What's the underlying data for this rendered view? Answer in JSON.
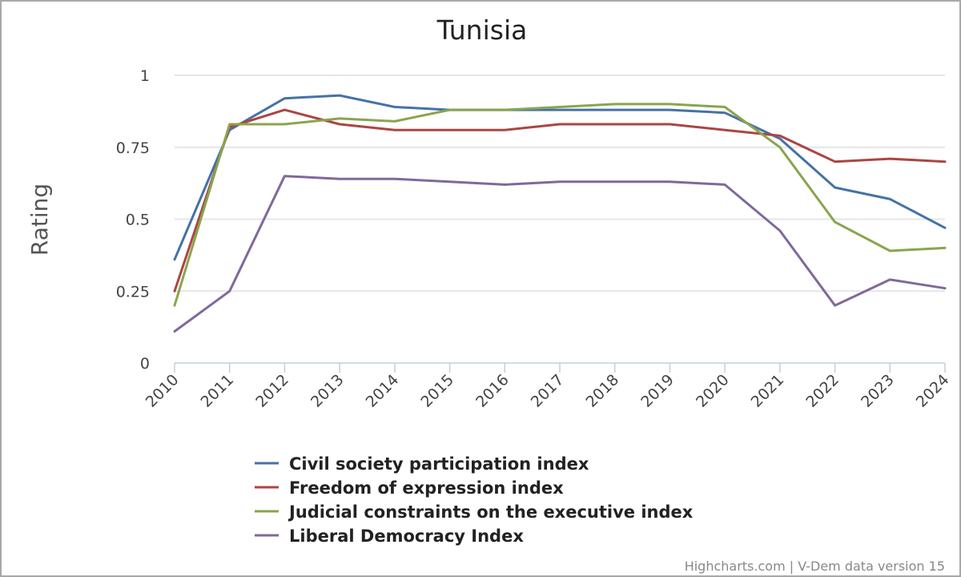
{
  "chart_data": {
    "type": "line",
    "title": "Tunisia",
    "xlabel": "",
    "ylabel": "Rating",
    "ylim": [
      0,
      1
    ],
    "y_ticks": [
      "0",
      "0.25",
      "0.5",
      "0.75",
      "1"
    ],
    "y_tick_values": [
      0,
      0.25,
      0.5,
      0.75,
      1
    ],
    "categories": [
      "2010",
      "2011",
      "2012",
      "2013",
      "2014",
      "2015",
      "2016",
      "2017",
      "2018",
      "2019",
      "2020",
      "2021",
      "2022",
      "2023",
      "2024"
    ],
    "series": [
      {
        "name": "Civil society participation index",
        "color": "#4572a7",
        "values": [
          0.36,
          0.81,
          0.92,
          0.93,
          0.89,
          0.88,
          0.88,
          0.88,
          0.88,
          0.88,
          0.87,
          0.78,
          0.61,
          0.57,
          0.47
        ]
      },
      {
        "name": "Freedom of expression index",
        "color": "#aa4643",
        "values": [
          0.25,
          0.82,
          0.88,
          0.83,
          0.81,
          0.81,
          0.81,
          0.83,
          0.83,
          0.83,
          0.81,
          0.79,
          0.7,
          0.71,
          0.7
        ]
      },
      {
        "name": "Judicial constraints on the executive index",
        "color": "#89a54e",
        "values": [
          0.2,
          0.83,
          0.83,
          0.85,
          0.84,
          0.88,
          0.88,
          0.89,
          0.9,
          0.9,
          0.89,
          0.75,
          0.49,
          0.39,
          0.4
        ]
      },
      {
        "name": "Liberal Democracy Index",
        "color": "#80699b",
        "values": [
          0.11,
          0.25,
          0.65,
          0.64,
          0.64,
          0.63,
          0.62,
          0.63,
          0.63,
          0.63,
          0.62,
          0.46,
          0.2,
          0.29,
          0.26
        ]
      }
    ],
    "legend_position": "bottom-center",
    "grid": true
  },
  "credits": "Highcharts.com | V-Dem data version 15"
}
